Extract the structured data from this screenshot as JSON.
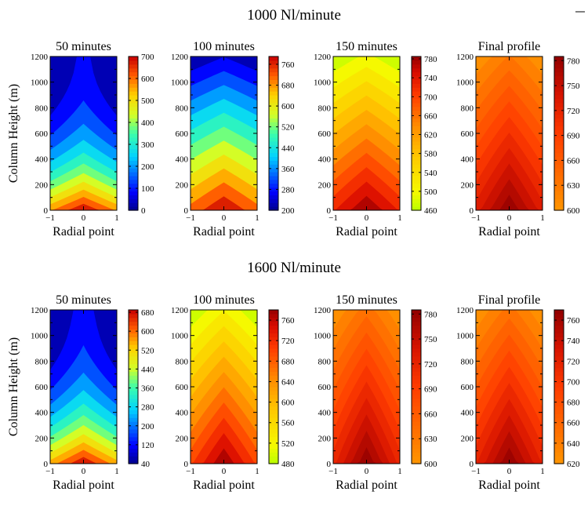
{
  "figure": {
    "groups": [
      {
        "title": "1000 Nl/minute",
        "panels": [
          {
            "title": "50 minutes",
            "bottom": 0,
            "top": 700,
            "center_rise": 150,
            "decay": "exp",
            "cbar_min": 0,
            "cbar_max": 700,
            "cbar_ticks": [
              0,
              100,
              200,
              300,
              400,
              500,
              600,
              700
            ],
            "cmap": "jet"
          },
          {
            "title": "100 minutes",
            "bottom": 200,
            "top": 790,
            "center_rise": 90,
            "decay": "lin",
            "cbar_min": 200,
            "cbar_max": 790,
            "cbar_ticks": [
              200,
              280,
              360,
              440,
              520,
              600,
              680,
              760
            ],
            "cmap": "jet"
          },
          {
            "title": "150 minutes",
            "bottom": 460,
            "top": 785,
            "center_rise": 70,
            "decay": "lin",
            "cbar_min": 460,
            "cbar_max": 785,
            "cbar_ticks": [
              460,
              500,
              540,
              580,
              620,
              660,
              700,
              740,
              780
            ],
            "cmap": "hot"
          },
          {
            "title": "Final profile",
            "bottom": 640,
            "top": 785,
            "center_rise": 60,
            "decay": "lin",
            "cbar_min": 600,
            "cbar_max": 785,
            "cbar_ticks": [
              600,
              630,
              660,
              690,
              720,
              750,
              780
            ],
            "cmap": "orange"
          }
        ]
      },
      {
        "title": "1600 Nl/minute",
        "panels": [
          {
            "title": "50 minutes",
            "bottom": 40,
            "top": 690,
            "center_rise": 170,
            "decay": "exp",
            "cbar_min": 40,
            "cbar_max": 690,
            "cbar_ticks": [
              40,
              120,
              200,
              280,
              360,
              440,
              520,
              600,
              680
            ],
            "cmap": "jet"
          },
          {
            "title": "100 minutes",
            "bottom": 480,
            "top": 780,
            "center_rise": 110,
            "decay": "lin",
            "cbar_min": 480,
            "cbar_max": 780,
            "cbar_ticks": [
              480,
              520,
              560,
              600,
              640,
              680,
              720,
              760
            ],
            "cmap": "hot"
          },
          {
            "title": "150 minutes",
            "bottom": 680,
            "top": 785,
            "center_rise": 60,
            "decay": "lin",
            "cbar_min": 600,
            "cbar_max": 785,
            "cbar_ticks": [
              600,
              630,
              660,
              690,
              720,
              750,
              780
            ],
            "cmap": "orange"
          },
          {
            "title": "Final profile",
            "bottom": 655,
            "top": 770,
            "center_rise": 60,
            "decay": "lin",
            "cbar_min": 620,
            "cbar_max": 770,
            "cbar_ticks": [
              620,
              640,
              660,
              680,
              700,
              720,
              740,
              760
            ],
            "cmap": "orange"
          }
        ]
      }
    ]
  },
  "chart_data": {
    "type": "heatmap",
    "xlabel": "Radial point",
    "ylabel": "Column Height (m)",
    "xlim": [
      -1,
      1
    ],
    "ylim": [
      0,
      1200
    ],
    "x_ticks": [
      -1,
      0,
      1
    ],
    "x_tick_labels": [
      "−1",
      "0",
      "1"
    ],
    "y_ticks": [
      0,
      200,
      400,
      600,
      800,
      1000,
      1200
    ],
    "grid": false
  }
}
